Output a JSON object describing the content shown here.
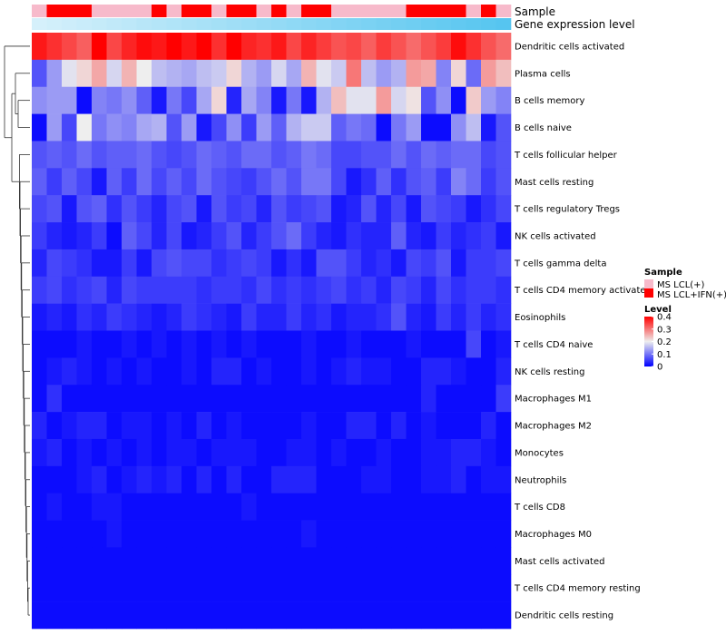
{
  "chart_data": {
    "type": "heatmap",
    "title": "",
    "xlabel": "",
    "ylabel": "",
    "annotation_rows": [
      "Sample",
      "Gene expression level"
    ],
    "sample_groups": [
      "-",
      "+",
      "+",
      "+",
      "-",
      "-",
      "-",
      "-",
      "+",
      "-",
      "+",
      "+",
      "-",
      "+",
      "+",
      "-",
      "+",
      "-",
      "+",
      "+",
      "-",
      "-",
      "-",
      "-",
      "-",
      "+",
      "+",
      "+",
      "+",
      "-",
      "+",
      "-"
    ],
    "expression_level": [
      0.02,
      0.05,
      0.08,
      0.11,
      0.14,
      0.17,
      0.2,
      0.23,
      0.26,
      0.29,
      0.32,
      0.35,
      0.38,
      0.41,
      0.44,
      0.47,
      0.5,
      0.53,
      0.56,
      0.59,
      0.62,
      0.65,
      0.68,
      0.71,
      0.74,
      0.77,
      0.8,
      0.83,
      0.86,
      0.89,
      0.92,
      0.95
    ],
    "rows": [
      "Dendritic cells activated",
      "Plasma cells",
      "B cells memory",
      "B cells naive",
      "T cells follicular helper",
      "Mast cells resting",
      "T cells regulatory  Tregs",
      "NK cells activated",
      "T cells gamma delta",
      "T cells CD4 memory activated",
      "Eosinophils",
      "T cells CD4 naive",
      "NK cells resting",
      "Macrophages M1",
      "Macrophages M2",
      "Monocytes",
      "Neutrophils",
      "T cells CD8",
      "Macrophages M0",
      "Mast cells activated",
      "T cells CD4 memory resting",
      "Dendritic cells resting"
    ],
    "values": [
      [
        0.38,
        0.36,
        0.34,
        0.32,
        0.4,
        0.34,
        0.37,
        0.39,
        0.38,
        0.4,
        0.38,
        0.4,
        0.36,
        0.42,
        0.37,
        0.36,
        0.38,
        0.34,
        0.37,
        0.35,
        0.33,
        0.34,
        0.32,
        0.35,
        0.33,
        0.31,
        0.33,
        0.35,
        0.39,
        0.36,
        0.33,
        0.31
      ],
      [
        0.07,
        0.13,
        0.19,
        0.22,
        0.26,
        0.18,
        0.25,
        0.2,
        0.16,
        0.15,
        0.14,
        0.16,
        0.17,
        0.22,
        0.15,
        0.13,
        0.18,
        0.14,
        0.25,
        0.19,
        0.17,
        0.3,
        0.16,
        0.13,
        0.15,
        0.27,
        0.26,
        0.11,
        0.22,
        0.09,
        0.27,
        0.24
      ],
      [
        0.12,
        0.13,
        0.13,
        0.01,
        0.11,
        0.1,
        0.12,
        0.08,
        0.02,
        0.1,
        0.06,
        0.14,
        0.22,
        0.03,
        0.14,
        0.11,
        0.02,
        0.1,
        0.02,
        0.15,
        0.24,
        0.19,
        0.19,
        0.27,
        0.18,
        0.21,
        0.07,
        0.12,
        0.01,
        0.23,
        0.13,
        0.11
      ],
      [
        0.01,
        0.13,
        0.06,
        0.2,
        0.1,
        0.12,
        0.11,
        0.14,
        0.15,
        0.07,
        0.13,
        0.02,
        0.06,
        0.12,
        0.05,
        0.13,
        0.08,
        0.15,
        0.17,
        0.17,
        0.08,
        0.1,
        0.09,
        0.01,
        0.1,
        0.13,
        0.01,
        0.01,
        0.12,
        0.16,
        0.02,
        0.07
      ],
      [
        0.07,
        0.08,
        0.07,
        0.09,
        0.07,
        0.08,
        0.08,
        0.09,
        0.07,
        0.06,
        0.07,
        0.09,
        0.08,
        0.07,
        0.09,
        0.09,
        0.07,
        0.08,
        0.1,
        0.09,
        0.06,
        0.06,
        0.07,
        0.07,
        0.09,
        0.07,
        0.09,
        0.08,
        0.09,
        0.09,
        0.06,
        0.07
      ],
      [
        0.08,
        0.05,
        0.08,
        0.06,
        0.02,
        0.08,
        0.05,
        0.09,
        0.06,
        0.08,
        0.06,
        0.09,
        0.07,
        0.06,
        0.05,
        0.07,
        0.09,
        0.07,
        0.1,
        0.1,
        0.06,
        0.02,
        0.04,
        0.08,
        0.04,
        0.07,
        0.08,
        0.05,
        0.11,
        0.09,
        0.05,
        0.07
      ],
      [
        0.06,
        0.07,
        0.02,
        0.07,
        0.08,
        0.04,
        0.07,
        0.05,
        0.03,
        0.06,
        0.07,
        0.02,
        0.07,
        0.05,
        0.06,
        0.03,
        0.07,
        0.05,
        0.06,
        0.07,
        0.02,
        0.03,
        0.07,
        0.03,
        0.06,
        0.02,
        0.07,
        0.06,
        0.05,
        0.02,
        0.04,
        0.06
      ],
      [
        0.05,
        0.03,
        0.02,
        0.03,
        0.05,
        0.01,
        0.08,
        0.06,
        0.03,
        0.06,
        0.02,
        0.03,
        0.05,
        0.07,
        0.03,
        0.05,
        0.07,
        0.09,
        0.05,
        0.03,
        0.02,
        0.04,
        0.03,
        0.03,
        0.08,
        0.03,
        0.02,
        0.05,
        0.03,
        0.04,
        0.05,
        0.02
      ],
      [
        0.03,
        0.06,
        0.05,
        0.04,
        0.02,
        0.02,
        0.05,
        0.02,
        0.06,
        0.07,
        0.06,
        0.06,
        0.04,
        0.05,
        0.06,
        0.05,
        0.02,
        0.04,
        0.02,
        0.07,
        0.07,
        0.05,
        0.03,
        0.04,
        0.02,
        0.06,
        0.05,
        0.07,
        0.02,
        0.05,
        0.05,
        0.06
      ],
      [
        0.05,
        0.06,
        0.04,
        0.05,
        0.06,
        0.03,
        0.06,
        0.05,
        0.05,
        0.05,
        0.05,
        0.04,
        0.05,
        0.05,
        0.04,
        0.06,
        0.04,
        0.05,
        0.04,
        0.05,
        0.06,
        0.04,
        0.05,
        0.03,
        0.06,
        0.05,
        0.03,
        0.06,
        0.04,
        0.05,
        0.05,
        0.04
      ],
      [
        0.02,
        0.03,
        0.02,
        0.04,
        0.03,
        0.05,
        0.04,
        0.03,
        0.02,
        0.03,
        0.05,
        0.04,
        0.03,
        0.02,
        0.05,
        0.03,
        0.03,
        0.05,
        0.03,
        0.04,
        0.02,
        0.03,
        0.03,
        0.04,
        0.07,
        0.03,
        0.02,
        0.05,
        0.03,
        0.05,
        0.03,
        0.04
      ],
      [
        0.01,
        0.01,
        0.01,
        0.02,
        0.01,
        0.01,
        0.02,
        0.01,
        0.02,
        0.01,
        0.02,
        0.01,
        0.02,
        0.01,
        0.02,
        0.01,
        0.01,
        0.01,
        0.02,
        0.01,
        0.01,
        0.02,
        0.01,
        0.01,
        0.01,
        0.02,
        0.01,
        0.01,
        0.01,
        0.06,
        0.01,
        0.02
      ],
      [
        0.01,
        0.02,
        0.03,
        0.02,
        0.01,
        0.02,
        0.01,
        0.02,
        0.01,
        0.01,
        0.02,
        0.01,
        0.03,
        0.03,
        0.01,
        0.02,
        0.01,
        0.01,
        0.02,
        0.01,
        0.02,
        0.03,
        0.02,
        0.02,
        0.01,
        0.01,
        0.03,
        0.03,
        0.02,
        0.01,
        0.01,
        0.03
      ],
      [
        0.01,
        0.04,
        0.01,
        0.01,
        0.01,
        0.01,
        0.01,
        0.01,
        0.01,
        0.01,
        0.01,
        0.01,
        0.01,
        0.01,
        0.01,
        0.01,
        0.01,
        0.01,
        0.01,
        0.01,
        0.01,
        0.01,
        0.01,
        0.01,
        0.01,
        0.01,
        0.03,
        0.01,
        0.01,
        0.01,
        0.01,
        0.05
      ],
      [
        0.03,
        0.01,
        0.02,
        0.03,
        0.03,
        0.01,
        0.02,
        0.02,
        0.01,
        0.02,
        0.01,
        0.03,
        0.01,
        0.02,
        0.01,
        0.01,
        0.01,
        0.01,
        0.02,
        0.01,
        0.01,
        0.03,
        0.03,
        0.01,
        0.03,
        0.01,
        0.02,
        0.01,
        0.01,
        0.01,
        0.03,
        0.01
      ],
      [
        0.02,
        0.03,
        0.01,
        0.02,
        0.01,
        0.02,
        0.01,
        0.02,
        0.01,
        0.02,
        0.02,
        0.01,
        0.02,
        0.02,
        0.02,
        0.01,
        0.01,
        0.02,
        0.02,
        0.01,
        0.02,
        0.01,
        0.01,
        0.02,
        0.01,
        0.01,
        0.02,
        0.02,
        0.03,
        0.03,
        0.02,
        0.01
      ],
      [
        0.01,
        0.01,
        0.01,
        0.02,
        0.03,
        0.01,
        0.02,
        0.03,
        0.02,
        0.03,
        0.01,
        0.03,
        0.01,
        0.03,
        0.01,
        0.01,
        0.03,
        0.03,
        0.03,
        0.01,
        0.01,
        0.01,
        0.02,
        0.02,
        0.01,
        0.01,
        0.02,
        0.02,
        0.03,
        0.01,
        0.02,
        0.02
      ],
      [
        0.01,
        0.02,
        0.01,
        0.01,
        0.02,
        0.02,
        0.01,
        0.01,
        0.01,
        0.01,
        0.01,
        0.01,
        0.01,
        0.01,
        0.02,
        0.01,
        0.01,
        0.01,
        0.01,
        0.01,
        0.01,
        0.01,
        0.01,
        0.01,
        0.01,
        0.01,
        0.01,
        0.01,
        0.01,
        0.01,
        0.01,
        0.01
      ],
      [
        0.01,
        0.01,
        0.01,
        0.01,
        0.01,
        0.02,
        0.01,
        0.01,
        0.01,
        0.01,
        0.01,
        0.01,
        0.01,
        0.01,
        0.01,
        0.01,
        0.01,
        0.01,
        0.02,
        0.01,
        0.01,
        0.01,
        0.01,
        0.01,
        0.01,
        0.01,
        0.01,
        0.01,
        0.01,
        0.01,
        0.01,
        0.01
      ],
      [
        0.01,
        0.01,
        0.01,
        0.01,
        0.01,
        0.01,
        0.01,
        0.01,
        0.01,
        0.01,
        0.01,
        0.01,
        0.01,
        0.01,
        0.01,
        0.01,
        0.01,
        0.01,
        0.01,
        0.01,
        0.01,
        0.01,
        0.01,
        0.01,
        0.01,
        0.01,
        0.01,
        0.01,
        0.01,
        0.01,
        0.01,
        0.01
      ],
      [
        0.01,
        0.01,
        0.01,
        0.01,
        0.01,
        0.01,
        0.01,
        0.01,
        0.01,
        0.01,
        0.01,
        0.01,
        0.01,
        0.01,
        0.01,
        0.01,
        0.01,
        0.01,
        0.01,
        0.01,
        0.01,
        0.01,
        0.01,
        0.01,
        0.01,
        0.01,
        0.01,
        0.01,
        0.01,
        0.01,
        0.01,
        0.01
      ],
      [
        0.01,
        0.01,
        0.01,
        0.01,
        0.01,
        0.01,
        0.01,
        0.01,
        0.01,
        0.01,
        0.01,
        0.01,
        0.01,
        0.01,
        0.01,
        0.01,
        0.01,
        0.01,
        0.01,
        0.01,
        0.01,
        0.01,
        0.01,
        0.01,
        0.01,
        0.01,
        0.01,
        0.01,
        0.01,
        0.01,
        0.01,
        0.01
      ]
    ],
    "color_scale": {
      "stops": [
        0,
        0.2,
        0.4
      ],
      "colors": [
        "#0000ff",
        "#eeeeee",
        "#ff0000"
      ]
    },
    "legend": {
      "sample_title": "Sample",
      "groups": [
        {
          "key": "-",
          "label": "MS LCL(+)",
          "color": "#f7bacb"
        },
        {
          "key": "+",
          "label": "MS LCL+IFN(+)",
          "color": "#ff0000"
        }
      ],
      "level_title": "Level",
      "ticks": [
        0.4,
        0.3,
        0.2,
        0.1,
        0
      ],
      "placement": "right"
    },
    "expression_colors": {
      "low": "#d8f1fb",
      "high": "#4fc3ef"
    }
  }
}
